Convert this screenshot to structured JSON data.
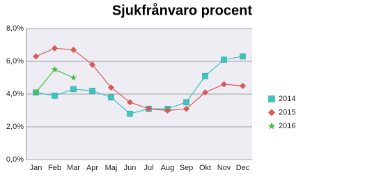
{
  "chart_data": {
    "type": "line",
    "title": "Sjukfrånvaro procent",
    "categories": [
      "Jan",
      "Feb",
      "Mar",
      "Apr",
      "Maj",
      "Jun",
      "Jul",
      "Aug",
      "Sep",
      "Okt",
      "Nov",
      "Dec"
    ],
    "series": [
      {
        "name": "2014",
        "color": "#3cc4bd",
        "marker": "square",
        "values": [
          4.1,
          3.9,
          4.3,
          4.2,
          3.8,
          2.8,
          3.1,
          3.1,
          3.5,
          5.1,
          6.1,
          6.3
        ]
      },
      {
        "name": "2015",
        "color": "#d65a5a",
        "marker": "diamond",
        "values": [
          6.3,
          6.8,
          6.7,
          5.8,
          4.4,
          3.5,
          3.1,
          3.0,
          3.1,
          4.1,
          4.6,
          4.5
        ]
      },
      {
        "name": "2016",
        "color": "#4cbb4c",
        "marker": "star",
        "values": [
          4.1,
          5.5,
          5.0,
          null,
          null,
          null,
          null,
          null,
          null,
          null,
          null,
          null
        ]
      }
    ],
    "ylim": [
      0,
      8
    ],
    "yticks": [
      {
        "value": 0,
        "label": "0,0%"
      },
      {
        "value": 2,
        "label": "2,0%"
      },
      {
        "value": 4,
        "label": "4,0%"
      },
      {
        "value": 6,
        "label": "6,0%"
      },
      {
        "value": 8,
        "label": "8,0%"
      }
    ],
    "grid": true,
    "legend": "right"
  }
}
